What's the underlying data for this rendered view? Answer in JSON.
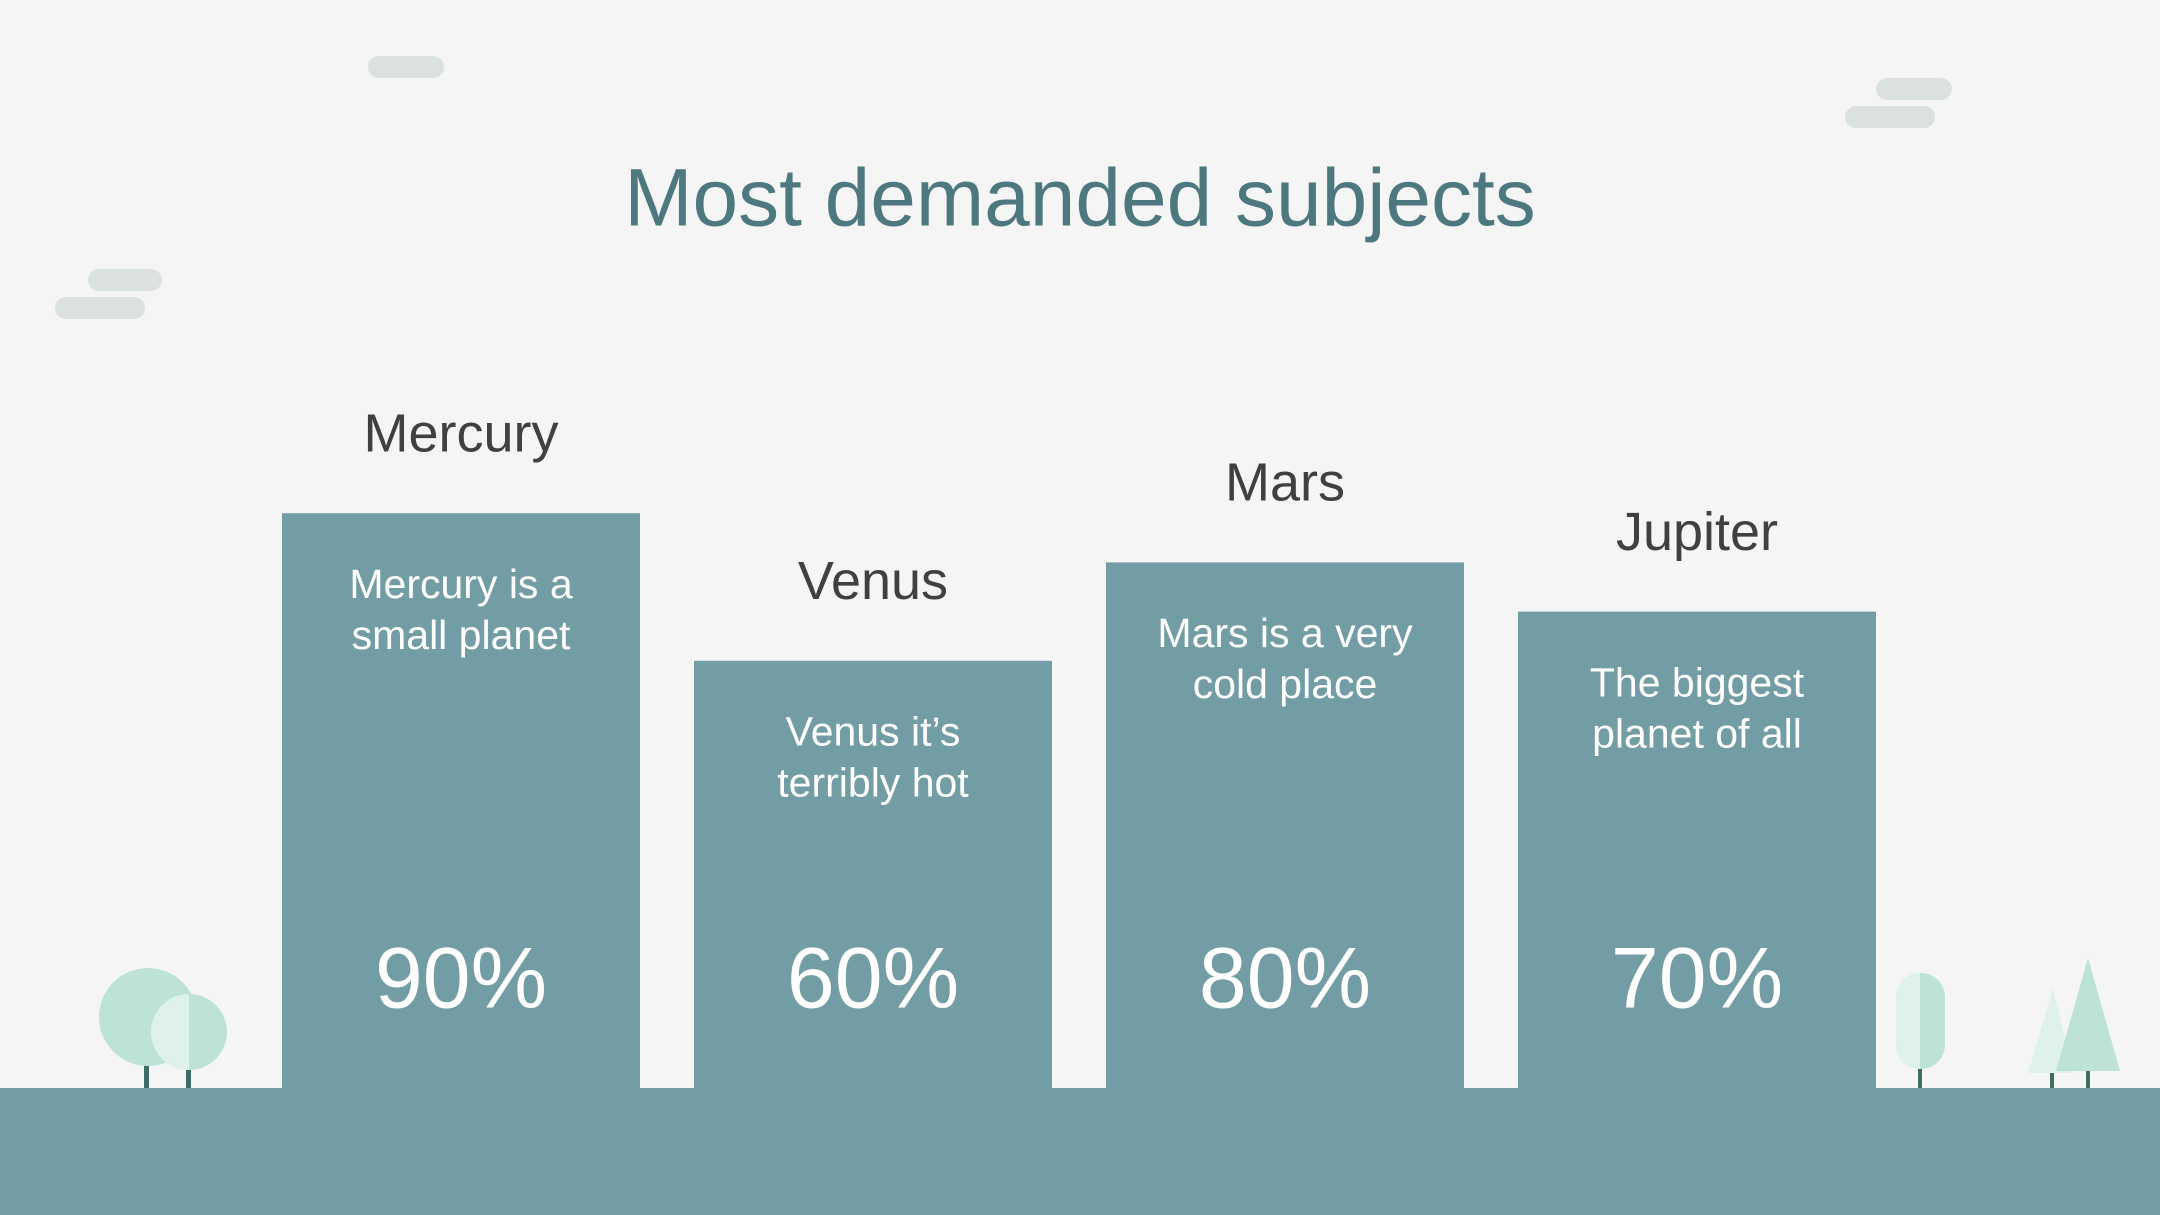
{
  "chart_data": {
    "type": "bar",
    "title": "Most demanded subjects",
    "categories": [
      "Mercury",
      "Venus",
      "Mars",
      "Jupiter"
    ],
    "descriptions": [
      [
        "Mercury is a",
        "small planet"
      ],
      [
        "Venus it’s",
        "terribly hot"
      ],
      [
        "Mars is a very",
        "cold place"
      ],
      [
        "The biggest",
        "planet of all"
      ]
    ],
    "values": [
      90,
      60,
      80,
      70
    ],
    "value_labels": [
      "90%",
      "60%",
      "80%",
      "70%"
    ],
    "color": "#739da5"
  }
}
